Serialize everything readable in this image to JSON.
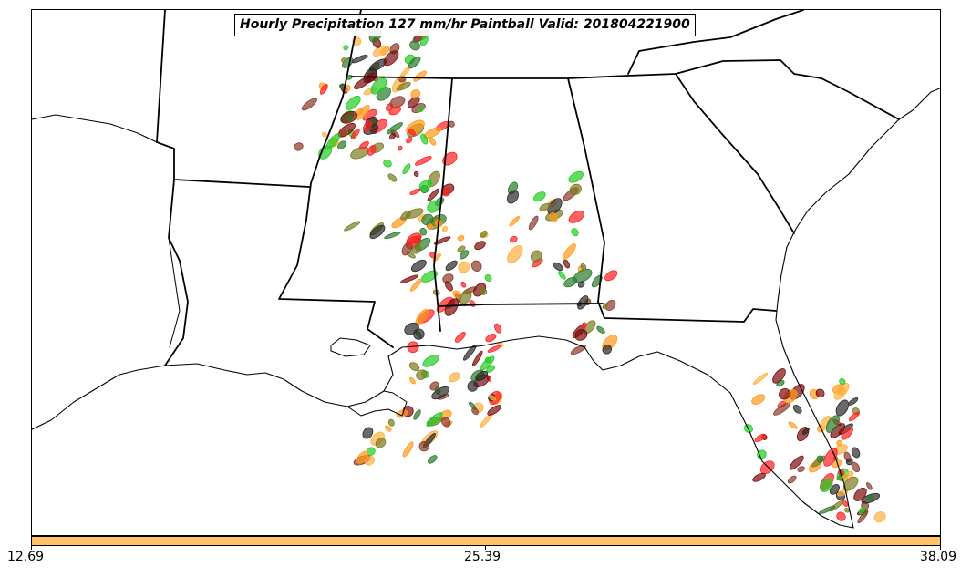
{
  "title": "Hourly Precipitation 127 mm/hr Paintball Valid: 201804221900",
  "colorbar": {
    "color": "#ffc266",
    "ticks": [
      "12.69",
      "25.39",
      "38.09"
    ]
  },
  "colors": {
    "green": "#22cc22",
    "dark_green": "#2a7a2a",
    "olive": "#7a7a20",
    "orange": "#ff9a1a",
    "light_orange": "#ffb040",
    "red": "#ff2020",
    "dark_red": "#7a0a0a",
    "gray": "#2a2a2a",
    "brown": "#8a3a2a"
  },
  "icons": [
    "state-boundaries",
    "coastline",
    "precipitation-blobs"
  ]
}
